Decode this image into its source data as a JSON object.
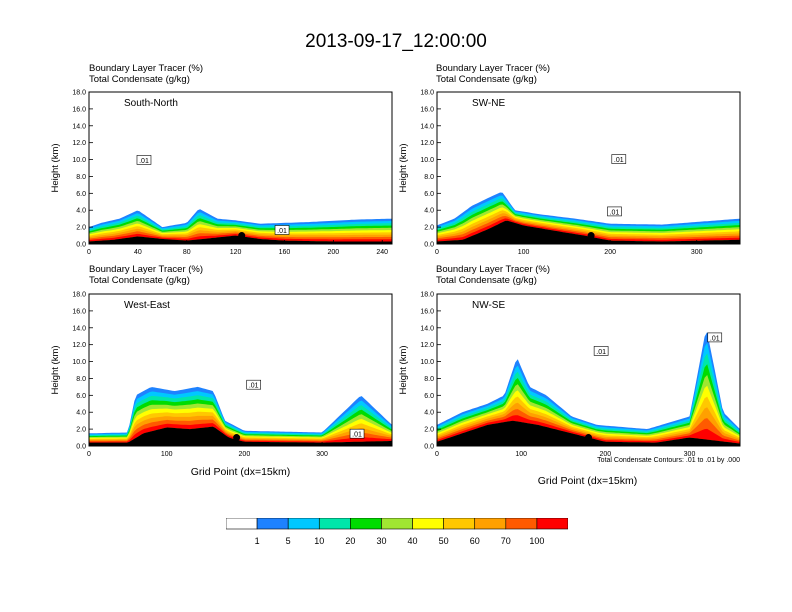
{
  "title": "2013-09-17_12:00:00",
  "field_titles": [
    "Boundary Layer Tracer   (%)",
    "Total Condensate   (g/kg)"
  ],
  "ylabel": "Height (km)",
  "xlabel": "Grid Point (dx=15km)",
  "contour_note": "Total Condensate Contours: .01 to .01 by .000",
  "colorbar": {
    "labels": [
      "1",
      "5",
      "10",
      "20",
      "30",
      "40",
      "50",
      "60",
      "70",
      "100"
    ],
    "colors": [
      "#ffffff",
      "#1e82ff",
      "#00c8ff",
      "#00e6aa",
      "#00dc00",
      "#a0e632",
      "#ffff00",
      "#ffc800",
      "#ffa000",
      "#ff5a00",
      "#ff0000"
    ]
  },
  "chart_data": [
    {
      "type": "heatmap",
      "name": "South-North",
      "xlim": [
        0,
        248
      ],
      "ylim": [
        0,
        18
      ],
      "x_ticks": [
        "0",
        "40",
        "80",
        "120",
        "160",
        "200",
        "240"
      ],
      "y_ticks": [
        "0.0",
        "2.0",
        "4.0",
        "6.0",
        "8.0",
        "10.0",
        "12.0",
        "14.0",
        "16.0",
        "18.0"
      ],
      "contour_labels": [
        {
          "text": ".01",
          "x": 45,
          "y": 9.9
        },
        {
          "text": ".01",
          "x": 158,
          "y": 1.6
        }
      ],
      "marker": {
        "x": 125,
        "y": 1.0
      },
      "terrain": [
        [
          0,
          0.3
        ],
        [
          20,
          0.5
        ],
        [
          40,
          0.9
        ],
        [
          60,
          0.6
        ],
        [
          80,
          0.4
        ],
        [
          100,
          0.7
        ],
        [
          120,
          1.0
        ],
        [
          140,
          0.6
        ],
        [
          160,
          0.4
        ],
        [
          200,
          0.3
        ],
        [
          248,
          0.3
        ]
      ],
      "plume_top": [
        [
          0,
          2.0
        ],
        [
          10,
          2.5
        ],
        [
          25,
          3.0
        ],
        [
          40,
          4.0
        ],
        [
          50,
          3.0
        ],
        [
          60,
          2.0
        ],
        [
          80,
          2.5
        ],
        [
          90,
          4.2
        ],
        [
          105,
          3.0
        ],
        [
          120,
          2.8
        ],
        [
          140,
          2.4
        ],
        [
          180,
          2.6
        ],
        [
          220,
          2.9
        ],
        [
          248,
          3.0
        ]
      ]
    },
    {
      "type": "heatmap",
      "name": "SW-NE",
      "xlim": [
        0,
        350
      ],
      "ylim": [
        0,
        18
      ],
      "x_ticks": [
        "0",
        "100",
        "200",
        "300"
      ],
      "y_ticks": [
        "0.0",
        "2.0",
        "4.0",
        "6.0",
        "8.0",
        "10.0",
        "12.0",
        "14.0",
        "16.0",
        "18.0"
      ],
      "contour_labels": [
        {
          "text": ".01",
          "x": 210,
          "y": 10.0
        },
        {
          "text": ".01",
          "x": 205,
          "y": 3.8
        }
      ],
      "marker": {
        "x": 178,
        "y": 1.0
      },
      "terrain": [
        [
          0,
          0.3
        ],
        [
          30,
          0.5
        ],
        [
          60,
          1.8
        ],
        [
          80,
          2.8
        ],
        [
          100,
          2.2
        ],
        [
          140,
          1.5
        ],
        [
          170,
          1.0
        ],
        [
          200,
          0.4
        ],
        [
          260,
          0.3
        ],
        [
          350,
          0.5
        ]
      ],
      "plume_top": [
        [
          0,
          2.2
        ],
        [
          20,
          3.0
        ],
        [
          40,
          4.5
        ],
        [
          60,
          5.5
        ],
        [
          75,
          6.2
        ],
        [
          90,
          4.0
        ],
        [
          120,
          3.5
        ],
        [
          160,
          3.0
        ],
        [
          200,
          2.4
        ],
        [
          260,
          2.3
        ],
        [
          350,
          3.0
        ]
      ]
    },
    {
      "type": "heatmap",
      "name": "West-East",
      "xlim": [
        0,
        390
      ],
      "ylim": [
        0,
        18
      ],
      "x_ticks": [
        "0",
        "100",
        "200",
        "300"
      ],
      "y_ticks": [
        "0.0",
        "2.0",
        "4.0",
        "6.0",
        "8.0",
        "10.0",
        "12.0",
        "14.0",
        "16.0",
        "18.0"
      ],
      "contour_labels": [
        {
          "text": ".01",
          "x": 212,
          "y": 7.2
        },
        {
          "text": ".01",
          "x": 345,
          "y": 1.4
        }
      ],
      "marker": {
        "x": 190,
        "y": 1.0
      },
      "terrain": [
        [
          0,
          0.4
        ],
        [
          50,
          0.4
        ],
        [
          70,
          1.5
        ],
        [
          100,
          2.2
        ],
        [
          130,
          2.0
        ],
        [
          160,
          2.3
        ],
        [
          180,
          1.0
        ],
        [
          200,
          0.5
        ],
        [
          300,
          0.4
        ],
        [
          390,
          0.6
        ]
      ],
      "plume_top": [
        [
          0,
          1.5
        ],
        [
          50,
          1.6
        ],
        [
          60,
          6.0
        ],
        [
          80,
          7.0
        ],
        [
          110,
          6.5
        ],
        [
          140,
          7.0
        ],
        [
          160,
          6.5
        ],
        [
          175,
          3.0
        ],
        [
          200,
          1.8
        ],
        [
          300,
          1.6
        ],
        [
          350,
          6.0
        ],
        [
          390,
          2.5
        ]
      ]
    },
    {
      "type": "heatmap",
      "name": "NW-SE",
      "xlim": [
        0,
        360
      ],
      "ylim": [
        0,
        18
      ],
      "x_ticks": [
        "0",
        "100",
        "200",
        "300"
      ],
      "y_ticks": [
        "0.0",
        "2.0",
        "4.0",
        "6.0",
        "8.0",
        "10.0",
        "12.0",
        "14.0",
        "16.0",
        "18.0"
      ],
      "contour_labels": [
        {
          "text": ".01",
          "x": 195,
          "y": 11.2
        },
        {
          "text": ".01",
          "x": 330,
          "y": 12.8
        }
      ],
      "marker": {
        "x": 180,
        "y": 1.0
      },
      "terrain": [
        [
          0,
          0.5
        ],
        [
          30,
          1.5
        ],
        [
          60,
          2.5
        ],
        [
          90,
          3.0
        ],
        [
          120,
          2.5
        ],
        [
          160,
          1.5
        ],
        [
          200,
          0.5
        ],
        [
          260,
          0.4
        ],
        [
          300,
          1.0
        ],
        [
          360,
          0.3
        ]
      ],
      "plume_top": [
        [
          0,
          2.5
        ],
        [
          30,
          4.0
        ],
        [
          60,
          5.0
        ],
        [
          80,
          6.0
        ],
        [
          95,
          10.5
        ],
        [
          110,
          7.0
        ],
        [
          130,
          6.0
        ],
        [
          160,
          3.5
        ],
        [
          190,
          2.5
        ],
        [
          250,
          2.0
        ],
        [
          300,
          3.5
        ],
        [
          320,
          14.0
        ],
        [
          340,
          4.0
        ],
        [
          360,
          2.0
        ]
      ]
    }
  ]
}
